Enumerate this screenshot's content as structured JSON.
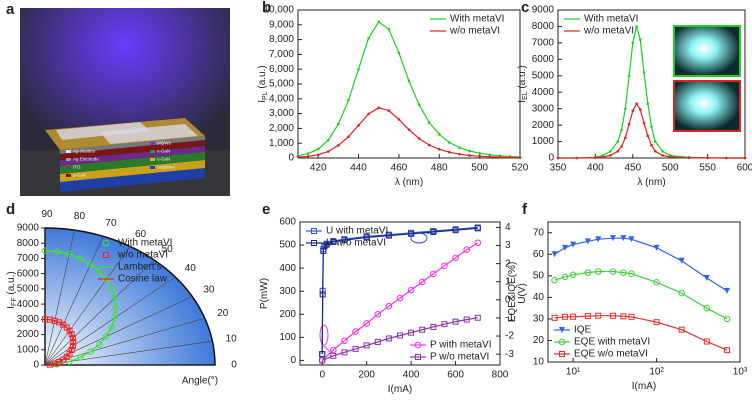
{
  "schematic": {
    "panel_label": "a",
    "layers": [
      "Ag clusters",
      "Ag Electrode",
      "ITO",
      "p-GaN",
      "MQWs",
      "n-GaN",
      "u-GaN",
      "Sapphire"
    ]
  },
  "chart_data": [
    {
      "type": "line",
      "panel_label": "b",
      "xlabel": "λ (nm)",
      "ylabel": "I",
      "ylabel_sub": "PL",
      "ylabel_unit": " (a.u.)",
      "xlim": [
        410,
        520
      ],
      "xticks": [
        420,
        440,
        460,
        480,
        500,
        520
      ],
      "ylim": [
        0,
        10000
      ],
      "yticks": [
        0,
        {
          "value": 1000,
          "label": "1,000"
        },
        {
          "value": 2000,
          "label": "2,000"
        },
        {
          "value": 3000,
          "label": "3,000"
        },
        {
          "value": 4000,
          "label": "4,000"
        },
        {
          "value": 5000,
          "label": "5,000"
        },
        {
          "value": 6000,
          "label": "6,000"
        },
        {
          "value": 7000,
          "label": "7,000"
        },
        {
          "value": 8000,
          "label": "8,000"
        },
        {
          "value": 9000,
          "label": "9,000"
        },
        {
          "value": 10000,
          "label": "10,000"
        }
      ],
      "legend": "top-right",
      "x": [
        410,
        415,
        420,
        425,
        430,
        435,
        440,
        445,
        450,
        455,
        460,
        465,
        470,
        475,
        480,
        485,
        490,
        495,
        500,
        505,
        510,
        515,
        520
      ],
      "series": [
        {
          "name": "With metaVI",
          "color": "#22cc22",
          "marker": "dot",
          "line": true,
          "values": [
            150,
            300,
            600,
            1200,
            2300,
            3900,
            6000,
            8100,
            9200,
            8700,
            7100,
            5200,
            3600,
            2400,
            1600,
            1050,
            700,
            470,
            320,
            220,
            150,
            100,
            70
          ]
        },
        {
          "name": "w/o metaVI",
          "color": "#dd2222",
          "marker": "dot",
          "line": true,
          "values": [
            55,
            110,
            220,
            440,
            850,
            1440,
            2200,
            2980,
            3390,
            3200,
            2610,
            1910,
            1320,
            880,
            590,
            390,
            260,
            170,
            120,
            80,
            55,
            37,
            26
          ]
        }
      ]
    },
    {
      "type": "line",
      "panel_label": "c",
      "xlabel": "λ (nm)",
      "ylabel": "I",
      "ylabel_sub": "EL",
      "ylabel_unit": " (a.u.)",
      "xlim": [
        350,
        600
      ],
      "xticks": [
        350,
        400,
        450,
        500,
        550,
        600
      ],
      "ylim": [
        0,
        9000
      ],
      "yticks": [
        0,
        1000,
        2000,
        3000,
        4000,
        5000,
        6000,
        7000,
        8000,
        9000
      ],
      "legend": "top-left",
      "x": [
        350,
        375,
        400,
        410,
        420,
        430,
        435,
        440,
        445,
        450,
        455,
        460,
        465,
        470,
        475,
        480,
        490,
        500,
        525,
        550,
        575,
        600
      ],
      "series": [
        {
          "name": "With metaVI",
          "color": "#22cc22",
          "marker": "dot",
          "line": true,
          "values": [
            0,
            0,
            50,
            150,
            400,
            1000,
            1700,
            3000,
            5000,
            7000,
            8000,
            7200,
            5200,
            3300,
            1900,
            1000,
            400,
            150,
            40,
            10,
            0,
            0
          ]
        },
        {
          "name": "w/o metaVI",
          "color": "#dd2222",
          "marker": "dot",
          "line": true,
          "values": [
            0,
            0,
            20,
            60,
            160,
            410,
            700,
            1230,
            2050,
            2870,
            3300,
            2950,
            2130,
            1350,
            780,
            410,
            160,
            60,
            15,
            5,
            0,
            0
          ]
        }
      ]
    },
    {
      "type": "polar",
      "panel_label": "d",
      "rlabel": "I",
      "rlabel_sub": "FF",
      "rlabel_unit": " (a.u.)",
      "thetalabel": "Angle(°)",
      "rlim": [
        0,
        9000
      ],
      "rticks": [
        0,
        1000,
        2000,
        3000,
        4000,
        5000,
        6000,
        7000,
        8000,
        9000
      ],
      "thetalim": [
        0,
        90
      ],
      "thetaticks": [
        0,
        10,
        20,
        30,
        40,
        50,
        60,
        70,
        80,
        90
      ],
      "theta": [
        90,
        85,
        80,
        75,
        70,
        65,
        60,
        55,
        50,
        45,
        40,
        35,
        30,
        25,
        20,
        15,
        10,
        5
      ],
      "series": [
        {
          "name": "With metaVI",
          "color": "#44dd44",
          "marker": "circle",
          "line": true,
          "values": [
            7500,
            7470,
            7390,
            7240,
            7050,
            6800,
            6500,
            6140,
            5750,
            5300,
            4820,
            4300,
            3750,
            3170,
            2570,
            1940,
            1300,
            650
          ]
        },
        {
          "name": "w/o metaVI",
          "color": "#ee2222",
          "marker": "square",
          "line": true,
          "values": [
            3000,
            2990,
            2950,
            2900,
            2820,
            2720,
            2600,
            2460,
            2300,
            2120,
            1930,
            1720,
            1500,
            1270,
            1030,
            780,
            520,
            260
          ]
        }
      ],
      "line_legend": [
        "Lambert's",
        "Cosine law"
      ]
    },
    {
      "type": "scatter",
      "panel_label": "e",
      "xlabel": "I(mA)",
      "ylabel": "P(mW)",
      "y2label": "U(V)",
      "xlim": [
        -100,
        800
      ],
      "xticks": [
        0,
        200,
        400,
        600,
        800
      ],
      "ylim": [
        -20,
        600
      ],
      "yticks": [
        0,
        100,
        200,
        300,
        400,
        500,
        600
      ],
      "ycolor": "#e020e0",
      "y2lim": [
        -3.6,
        4.3
      ],
      "y2ticks": [
        -3,
        -2,
        -1,
        0,
        1,
        2,
        3,
        4
      ],
      "y2color": "#2a7fe0",
      "series": [
        {
          "name": "U with metaVI",
          "color": "#3355cc",
          "marker": "square",
          "line": true,
          "axis": "y2",
          "legend": "top-left",
          "x": [
            0,
            2,
            5,
            10,
            20,
            50,
            100,
            200,
            300,
            400,
            500,
            600,
            700
          ],
          "values": [
            -3,
            0.5,
            2.8,
            3,
            3.1,
            3.25,
            3.35,
            3.5,
            3.6,
            3.7,
            3.8,
            3.9,
            4
          ]
        },
        {
          "name": "U w/o metaVI",
          "color": "#1a2a8a",
          "marker": "square",
          "line": true,
          "axis": "y2",
          "legend": "top-left",
          "x": [
            0,
            2,
            5,
            10,
            20,
            50,
            100,
            200,
            300,
            400,
            500,
            600,
            700
          ],
          "values": [
            -3,
            0.3,
            2.7,
            2.95,
            3.05,
            3.2,
            3.3,
            3.45,
            3.55,
            3.65,
            3.75,
            3.85,
            3.95
          ]
        },
        {
          "name": "P with metaVI",
          "color": "#ee33ee",
          "marker": "circle",
          "line": true,
          "legend": "bottom-right",
          "x": [
            0,
            50,
            100,
            150,
            200,
            250,
            300,
            350,
            400,
            450,
            500,
            550,
            600,
            650,
            700
          ],
          "values": [
            0,
            45,
            85,
            125,
            160,
            200,
            235,
            270,
            305,
            340,
            375,
            410,
            445,
            480,
            510
          ]
        },
        {
          "name": "P w/o metaVI",
          "color": "#8833aa",
          "marker": "square",
          "line": true,
          "legend": "bottom-right",
          "x": [
            0,
            50,
            100,
            150,
            200,
            250,
            300,
            350,
            400,
            450,
            500,
            550,
            600,
            650,
            700
          ],
          "values": [
            0,
            20,
            35,
            50,
            65,
            80,
            95,
            108,
            120,
            133,
            145,
            157,
            168,
            177,
            185
          ]
        }
      ]
    },
    {
      "type": "line",
      "panel_label": "f",
      "xlabel": "I(mA)",
      "ylabel": "EQE&IQE(%)",
      "xscale": "log",
      "xlim": [
        5,
        1000
      ],
      "xticks": [
        {
          "value": 10,
          "label": "10¹"
        },
        {
          "value": 100,
          "label": "10²"
        },
        {
          "value": 1000,
          "label": "10³"
        }
      ],
      "ylim": [
        10,
        75
      ],
      "yticks": [
        10,
        20,
        30,
        40,
        50,
        60,
        70
      ],
      "legend": "bottom-left",
      "x": [
        6,
        8,
        10,
        15,
        20,
        30,
        40,
        50,
        100,
        200,
        400,
        700
      ],
      "series": [
        {
          "name": "IQE",
          "color": "#3366dd",
          "marker": "triangle",
          "line": true,
          "values": [
            60,
            63,
            64.5,
            66,
            67,
            67.5,
            67.5,
            67,
            63,
            57,
            49,
            43
          ]
        },
        {
          "name": "EQE with metaVI",
          "color": "#44cc44",
          "marker": "circle",
          "line": true,
          "values": [
            48,
            49.5,
            50.5,
            51.5,
            52,
            52,
            51.5,
            51,
            47,
            42,
            35,
            30
          ]
        },
        {
          "name": "EQE w/o metaVI",
          "color": "#e03030",
          "marker": "square",
          "line": true,
          "values": [
            30.5,
            31,
            31,
            31.3,
            31.5,
            31.5,
            31.2,
            31,
            28.5,
            25,
            19.5,
            15.5
          ]
        }
      ]
    }
  ]
}
